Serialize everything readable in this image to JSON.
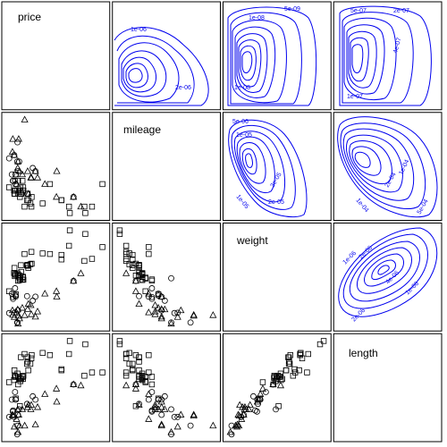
{
  "chart_data": {
    "type": "scatter",
    "title": "",
    "variables": [
      "price",
      "mileage",
      "weight",
      "length"
    ],
    "lower_panels": "scatter",
    "upper_panels": "density contours",
    "diagonal_panels": "variable labels",
    "marker_groups": [
      "square",
      "circle",
      "triangle"
    ],
    "contour_labels": {
      "price-mileage": [
        "1e-06",
        "2e-06"
      ],
      "price-weight": [
        "5e-09",
        "1e-08",
        "1e-08"
      ],
      "price-length": [
        "5e-07",
        "2e-07",
        "4e-07",
        "1e-07"
      ],
      "mileage-weight": [
        "5e-06",
        "1e-05",
        "2e-05",
        "3e-05",
        "1e-05"
      ],
      "mileage-length": [
        "1e-04",
        "2e-04",
        "1e-04",
        "5e-04"
      ],
      "weight-length": [
        "1e-06",
        "2e-06",
        "1e-06",
        "2e-06",
        "4e-06"
      ]
    },
    "points": [
      {
        "price": 4099,
        "mileage": 22,
        "weight": 2930,
        "length": 186,
        "group": "circle"
      },
      {
        "price": 4749,
        "mileage": 17,
        "weight": 3350,
        "length": 173,
        "group": "square"
      },
      {
        "price": 3799,
        "mileage": 22,
        "weight": 2640,
        "length": 168,
        "group": "circle"
      },
      {
        "price": 4816,
        "mileage": 20,
        "weight": 3250,
        "length": 196,
        "group": "square"
      },
      {
        "price": 7827,
        "mileage": 15,
        "weight": 4080,
        "length": 222,
        "group": "square"
      },
      {
        "price": 5788,
        "mileage": 18,
        "weight": 3670,
        "length": 218,
        "group": "square"
      },
      {
        "price": 4453,
        "mileage": 26,
        "weight": 2230,
        "length": 170,
        "group": "triangle"
      },
      {
        "price": 5189,
        "mileage": 20,
        "weight": 3280,
        "length": 200,
        "group": "square"
      },
      {
        "price": 10372,
        "mileage": 16,
        "weight": 3880,
        "length": 207,
        "group": "square"
      },
      {
        "price": 4082,
        "mileage": 19,
        "weight": 3400,
        "length": 200,
        "group": "square"
      },
      {
        "price": 11385,
        "mileage": 14,
        "weight": 4330,
        "length": 221,
        "group": "square"
      },
      {
        "price": 14500,
        "mileage": 14,
        "weight": 3900,
        "length": 204,
        "group": "square"
      },
      {
        "price": 15906,
        "mileage": 21,
        "weight": 4290,
        "length": 204,
        "group": "square"
      },
      {
        "price": 3299,
        "mileage": 29,
        "weight": 2110,
        "length": 163,
        "group": "circle"
      },
      {
        "price": 5705,
        "mileage": 16,
        "weight": 3690,
        "length": 212,
        "group": "square"
      },
      {
        "price": 4504,
        "mileage": 22,
        "weight": 3180,
        "length": 193,
        "group": "square"
      },
      {
        "price": 5104,
        "mileage": 22,
        "weight": 3220,
        "length": 200,
        "group": "square"
      },
      {
        "price": 3667,
        "mileage": 24,
        "weight": 2750,
        "length": 179,
        "group": "circle"
      },
      {
        "price": 3955,
        "mileage": 19,
        "weight": 3430,
        "length": 197,
        "group": "square"
      },
      {
        "price": 3984,
        "mileage": 30,
        "weight": 2120,
        "length": 163,
        "group": "circle"
      },
      {
        "price": 4010,
        "mileage": 18,
        "weight": 3600,
        "length": 206,
        "group": "square"
      },
      {
        "price": 5886,
        "mileage": 16,
        "weight": 3600,
        "length": 206,
        "group": "square"
      },
      {
        "price": 6342,
        "mileage": 17,
        "weight": 3740,
        "length": 220,
        "group": "square"
      },
      {
        "price": 4389,
        "mileage": 28,
        "weight": 1800,
        "length": 147,
        "group": "circle"
      },
      {
        "price": 4187,
        "mileage": 21,
        "weight": 2650,
        "length": 179,
        "group": "circle"
      },
      {
        "price": 11497,
        "mileage": 12,
        "weight": 4840,
        "length": 233,
        "group": "square"
      },
      {
        "price": 13594,
        "mileage": 12,
        "weight": 4720,
        "length": 230,
        "group": "square"
      },
      {
        "price": 13466,
        "mileage": 14,
        "weight": 3830,
        "length": 201,
        "group": "square"
      },
      {
        "price": 3829,
        "mileage": 22,
        "weight": 2580,
        "length": 169,
        "group": "circle"
      },
      {
        "price": 5379,
        "mileage": 14,
        "weight": 4060,
        "length": 221,
        "group": "square"
      },
      {
        "price": 6165,
        "mileage": 15,
        "weight": 3720,
        "length": 212,
        "group": "square"
      },
      {
        "price": 4516,
        "mileage": 18,
        "weight": 3370,
        "length": 200,
        "group": "square"
      },
      {
        "price": 6303,
        "mileage": 14,
        "weight": 4130,
        "length": 217,
        "group": "square"
      },
      {
        "price": 3291,
        "mileage": 20,
        "weight": 2830,
        "length": 195,
        "group": "square"
      },
      {
        "price": 8814,
        "mileage": 21,
        "weight": 4060,
        "length": 220,
        "group": "square"
      },
      {
        "price": 5172,
        "mileage": 19,
        "weight": 3310,
        "length": 198,
        "group": "square"
      },
      {
        "price": 4733,
        "mileage": 19,
        "weight": 3300,
        "length": 198,
        "group": "square"
      },
      {
        "price": 4890,
        "mileage": 18,
        "weight": 3690,
        "length": 218,
        "group": "square"
      },
      {
        "price": 4181,
        "mileage": 19,
        "weight": 3370,
        "length": 200,
        "group": "square"
      },
      {
        "price": 4195,
        "mileage": 24,
        "weight": 2730,
        "length": 180,
        "group": "square"
      },
      {
        "price": 10371,
        "mileage": 16,
        "weight": 4030,
        "length": 206,
        "group": "square"
      },
      {
        "price": 4647,
        "mileage": 28,
        "weight": 3260,
        "length": 170,
        "group": "circle"
      },
      {
        "price": 4425,
        "mileage": 34,
        "weight": 1800,
        "length": 155,
        "group": "circle"
      },
      {
        "price": 4482,
        "mileage": 25,
        "weight": 2200,
        "length": 165,
        "group": "circle"
      },
      {
        "price": 6486,
        "mileage": 26,
        "weight": 2520,
        "length": 182,
        "group": "circle"
      },
      {
        "price": 4060,
        "mileage": 18,
        "weight": 3330,
        "length": 201,
        "group": "square"
      },
      {
        "price": 5798,
        "mileage": 18,
        "weight": 3700,
        "length": 214,
        "group": "square"
      },
      {
        "price": 4934,
        "mileage": 18,
        "weight": 3470,
        "length": 198,
        "group": "square"
      },
      {
        "price": 5222,
        "mileage": 19,
        "weight": 3210,
        "length": 201,
        "group": "square"
      },
      {
        "price": 4723,
        "mileage": 19,
        "weight": 3200,
        "length": 199,
        "group": "square"
      },
      {
        "price": 4424,
        "mileage": 19,
        "weight": 3420,
        "length": 203,
        "group": "square"
      },
      {
        "price": 4172,
        "mileage": 24,
        "weight": 2690,
        "length": 179,
        "group": "circle"
      },
      {
        "price": 9690,
        "mileage": 17,
        "weight": 2830,
        "length": 189,
        "group": "triangle"
      },
      {
        "price": 6295,
        "mileage": 23,
        "weight": 2070,
        "length": 174,
        "group": "triangle"
      },
      {
        "price": 9735,
        "mileage": 25,
        "weight": 2650,
        "length": 177,
        "group": "triangle"
      },
      {
        "price": 6229,
        "mileage": 23,
        "weight": 2370,
        "length": 170,
        "group": "triangle"
      },
      {
        "price": 4589,
        "mileage": 35,
        "weight": 2020,
        "length": 165,
        "group": "triangle"
      },
      {
        "price": 5079,
        "mileage": 24,
        "weight": 2280,
        "length": 170,
        "group": "triangle"
      },
      {
        "price": 8129,
        "mileage": 21,
        "weight": 2750,
        "length": 184,
        "group": "triangle"
      },
      {
        "price": 4296,
        "mileage": 21,
        "weight": 2130,
        "length": 161,
        "group": "triangle"
      },
      {
        "price": 5799,
        "mileage": 25,
        "weight": 2240,
        "length": 172,
        "group": "triangle"
      },
      {
        "price": 4499,
        "mileage": 28,
        "weight": 1760,
        "length": 149,
        "group": "triangle"
      },
      {
        "price": 3995,
        "mileage": 30,
        "weight": 1980,
        "length": 154,
        "group": "triangle"
      },
      {
        "price": 12990,
        "mileage": 14,
        "weight": 3420,
        "length": 192,
        "group": "triangle"
      },
      {
        "price": 11995,
        "mileage": 17,
        "weight": 3170,
        "length": 193,
        "group": "triangle"
      },
      {
        "price": 6850,
        "mileage": 25,
        "weight": 2650,
        "length": 179,
        "group": "circle"
      },
      {
        "price": 3798,
        "mileage": 35,
        "weight": 2050,
        "length": 164,
        "group": "triangle"
      },
      {
        "price": 5899,
        "mileage": 18,
        "weight": 2410,
        "length": 174,
        "group": "triangle"
      },
      {
        "price": 3748,
        "mileage": 31,
        "weight": 2200,
        "length": 165,
        "group": "triangle"
      },
      {
        "price": 5719,
        "mileage": 18,
        "weight": 2670,
        "length": 175,
        "group": "circle"
      },
      {
        "price": 7140,
        "mileage": 23,
        "weight": 2160,
        "length": 172,
        "group": "triangle"
      },
      {
        "price": 5397,
        "mileage": 41,
        "weight": 2040,
        "length": 155,
        "group": "triangle"
      },
      {
        "price": 4697,
        "mileage": 25,
        "weight": 1930,
        "length": 155,
        "group": "triangle"
      },
      {
        "price": 6850,
        "mileage": 25,
        "weight": 1990,
        "length": 156,
        "group": "triangle"
      },
      {
        "price": 11995,
        "mileage": 17,
        "weight": 3170,
        "length": 193,
        "group": "circle"
      }
    ]
  }
}
